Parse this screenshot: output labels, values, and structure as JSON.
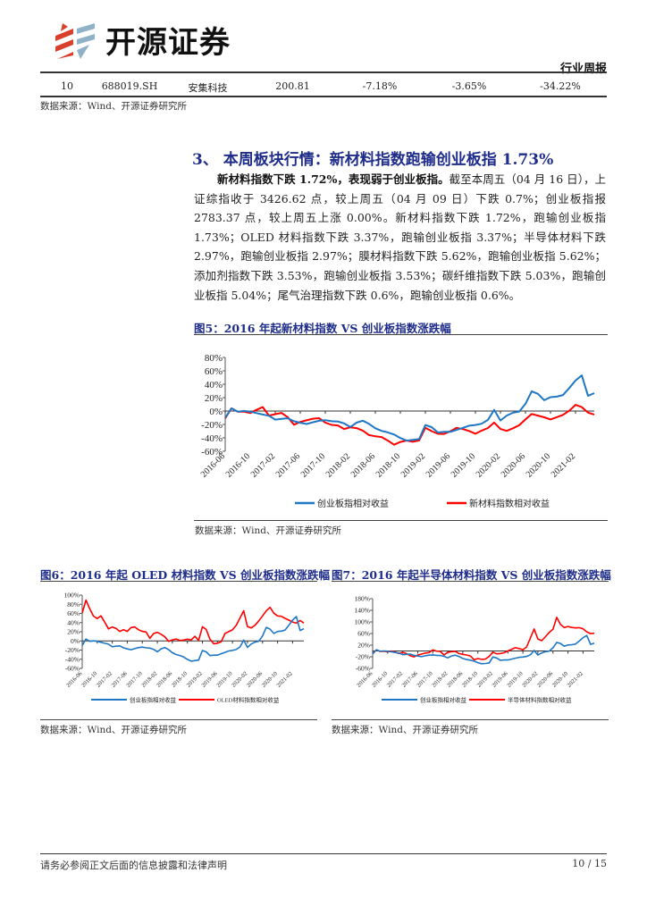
{
  "header": {
    "logo_text": "开源证券",
    "report_type": "行业周报"
  },
  "table_row": {
    "rank": "10",
    "code": "688019.SH",
    "name": "安集科技",
    "price": "200.81",
    "chg1": "-7.18%",
    "chg2": "-3.65%",
    "chg3": "-34.22%"
  },
  "table_source": "数据来源：Wind、开源证券研究所",
  "section": {
    "heading": "3、 本周板块行情：新材料指数跑输创业板指 1.73%",
    "lead": "新材料指数下跌 1.72%，表现弱于创业板指。",
    "body": "截至本周五（04 月 16 日），上证综指收于 3426.62 点，较上周五（04 月 09 日）下跌 0.7%；创业板指报 2783.37 点，较上周五上涨 0.00%。新材料指数下跌 1.72%，跑输创业板指 1.73%；OLED 材料指数下跌 3.37%，跑输创业板指 3.37%；半导体材料下跌 2.97%，跑输创业板指 2.97%；膜材料指数下跌 5.62%，跑输创业板指 5.62%；添加剂指数下跌 3.53%，跑输创业板指 3.53%；碳纤维指数下跌 5.03%，跑输创业板指 5.04%；尾气治理指数下跌 0.6%，跑输创业板指 0.6%。"
  },
  "colors": {
    "blue": "#1f77c4",
    "red": "#ff0000",
    "heading": "#1f2d8a"
  },
  "chart_data": [
    {
      "type": "line",
      "title": "图5：2016 年起新材料指数 VS 创业板指数涨跌幅",
      "source": "数据来源：Wind、开源证券研究所",
      "ylim": [
        -60,
        80
      ],
      "yticks": [
        80,
        60,
        40,
        20,
        0,
        -20,
        -40,
        -60
      ],
      "ytick_labels": [
        "80%",
        "60%",
        "40%",
        "20%",
        "0%",
        "-20%",
        "-40%",
        "-60%"
      ],
      "xlim": [
        0,
        59
      ],
      "xticks": [
        "2016-06",
        "2016-10",
        "2017-02",
        "2017-06",
        "2017-10",
        "2018-02",
        "2018-06",
        "2018-10",
        "2019-02",
        "2019-06",
        "2019-10",
        "2020-02",
        "2020-06",
        "2020-10",
        "2021-02"
      ],
      "series": [
        {
          "name": "创业板指相对收益",
          "color": "#1f77c4",
          "values": [
            -10,
            3,
            -2,
            0,
            0,
            -2,
            -5,
            -8,
            -14,
            -12,
            -10,
            -14,
            -17,
            -20,
            -18,
            -15,
            -13,
            -14,
            -15,
            -19,
            -25,
            -18,
            -14,
            -18,
            -25,
            -30,
            -33,
            -36,
            -40,
            -43,
            -42,
            -42,
            -22,
            -25,
            -32,
            -30,
            -30,
            -28,
            -26,
            -23,
            -21,
            -18,
            -12,
            2,
            -15,
            -8,
            -3,
            0,
            12,
            30,
            25,
            15,
            20,
            22,
            25,
            35,
            45,
            52,
            22,
            27
          ]
        },
        {
          "name": "新材料指数相对收益",
          "color": "#ff0000",
          "values": [
            -12,
            3,
            -1,
            0,
            -2,
            2,
            5,
            -8,
            -5,
            -2,
            -8,
            -20,
            -17,
            -15,
            -12,
            -10,
            -16,
            -20,
            -22,
            -28,
            -25,
            -25,
            -28,
            -35,
            -38,
            -40,
            -45,
            -50,
            -45,
            -43,
            -46,
            -45,
            -26,
            -30,
            -33,
            -33,
            -30,
            -26,
            -28,
            -30,
            -33,
            -28,
            -25,
            -18,
            -28,
            -30,
            -25,
            -20,
            -12,
            -5,
            -8,
            -10,
            -12,
            -8,
            -5,
            0,
            8,
            5,
            -2,
            -4
          ]
        }
      ]
    },
    {
      "type": "line",
      "title": "图6：2016 年起 OLED 材料指数 VS 创业板指数涨跌幅",
      "source": "数据来源：Wind、开源证券研究所",
      "ylim": [
        -60,
        100
      ],
      "yticks": [
        100,
        80,
        60,
        40,
        20,
        0,
        -20,
        -40,
        -60
      ],
      "ytick_labels": [
        "100%",
        "80%",
        "60%",
        "40%",
        "20%",
        "0%",
        "-20%",
        "-40%",
        "-60%"
      ],
      "xlim": [
        0,
        59
      ],
      "xticks": [
        "2016-06",
        "2016-10",
        "2017-02",
        "2017-06",
        "2017-10",
        "2018-02",
        "2018-06",
        "2018-10",
        "2019-02",
        "2019-06",
        "2019-10",
        "2020-02",
        "2020-06",
        "2020-10",
        "2021-02"
      ],
      "series": [
        {
          "name": "创业板指相对收益",
          "color": "#1f77c4",
          "values": [
            -10,
            3,
            -2,
            0,
            0,
            -2,
            -5,
            -8,
            -14,
            -12,
            -10,
            -14,
            -17,
            -20,
            -18,
            -15,
            -13,
            -14,
            -15,
            -19,
            -25,
            -18,
            -14,
            -18,
            -25,
            -30,
            -33,
            -36,
            -40,
            -43,
            -42,
            -42,
            -22,
            -25,
            -32,
            -30,
            -30,
            -28,
            -26,
            -23,
            -21,
            -18,
            -12,
            2,
            -15,
            -8,
            -3,
            0,
            12,
            30,
            25,
            15,
            20,
            22,
            25,
            35,
            45,
            52,
            22,
            27
          ]
        },
        {
          "name": "OLED材料指数相对收益",
          "color": "#ff0000",
          "values": [
            60,
            88,
            70,
            55,
            50,
            55,
            40,
            25,
            30,
            28,
            22,
            25,
            20,
            28,
            30,
            25,
            22,
            20,
            5,
            15,
            18,
            15,
            10,
            0,
            2,
            3,
            0,
            2,
            5,
            3,
            10,
            0,
            30,
            25,
            5,
            -5,
            -5,
            -3,
            15,
            20,
            25,
            35,
            50,
            65,
            30,
            28,
            35,
            45,
            55,
            65,
            72,
            60,
            55,
            55,
            50,
            45,
            40,
            38,
            45,
            40
          ]
        }
      ]
    },
    {
      "type": "line",
      "title": "图7：2016 年起半导体材料指数 VS 创业板指数涨跌幅",
      "source": "数据来源：Wind、开源证券研究所",
      "ylim": [
        -60,
        180
      ],
      "yticks": [
        180,
        140,
        100,
        60,
        20,
        -20,
        -60
      ],
      "ytick_labels": [
        "180%",
        "140%",
        "100%",
        "60%",
        "20%",
        "-20%",
        "-60%"
      ],
      "xlim": [
        0,
        59
      ],
      "xticks": [
        "2016-06",
        "2016-10",
        "2017-02",
        "2017-06",
        "2017-10",
        "2018-02",
        "2018-06",
        "2018-10",
        "2019-02",
        "2019-06",
        "2019-10",
        "2020-02",
        "2020-06",
        "2020-10",
        "2021-02"
      ],
      "series": [
        {
          "name": "创业板指相对收益",
          "color": "#1f77c4",
          "values": [
            -10,
            3,
            -2,
            0,
            0,
            -2,
            -5,
            -8,
            -14,
            -12,
            -10,
            -14,
            -17,
            -20,
            -18,
            -15,
            -13,
            -14,
            -15,
            -19,
            -25,
            -18,
            -14,
            -18,
            -25,
            -30,
            -33,
            -36,
            -40,
            -43,
            -42,
            -42,
            -22,
            -25,
            -32,
            -30,
            -30,
            -28,
            -26,
            -23,
            -21,
            -18,
            -12,
            2,
            -15,
            -8,
            -3,
            0,
            12,
            30,
            25,
            15,
            20,
            22,
            25,
            35,
            45,
            52,
            22,
            27
          ]
        },
        {
          "name": "半导体材料指数相对收益",
          "color": "#ff0000",
          "values": [
            -10,
            3,
            -2,
            0,
            -2,
            0,
            -5,
            -10,
            -5,
            -8,
            -15,
            -20,
            -15,
            -12,
            -8,
            -5,
            5,
            0,
            -2,
            -15,
            -5,
            -2,
            0,
            -8,
            -12,
            -15,
            -18,
            -30,
            -25,
            -28,
            -28,
            -20,
            -5,
            -10,
            -8,
            -5,
            0,
            5,
            10,
            8,
            5,
            15,
            45,
            75,
            40,
            35,
            50,
            65,
            75,
            115,
            90,
            80,
            85,
            82,
            80,
            80,
            75,
            65,
            60,
            62
          ]
        }
      ]
    }
  ],
  "footer": {
    "disclaimer": "请务必参阅正文后面的信息披露和法律声明",
    "page": "10 / 15"
  }
}
